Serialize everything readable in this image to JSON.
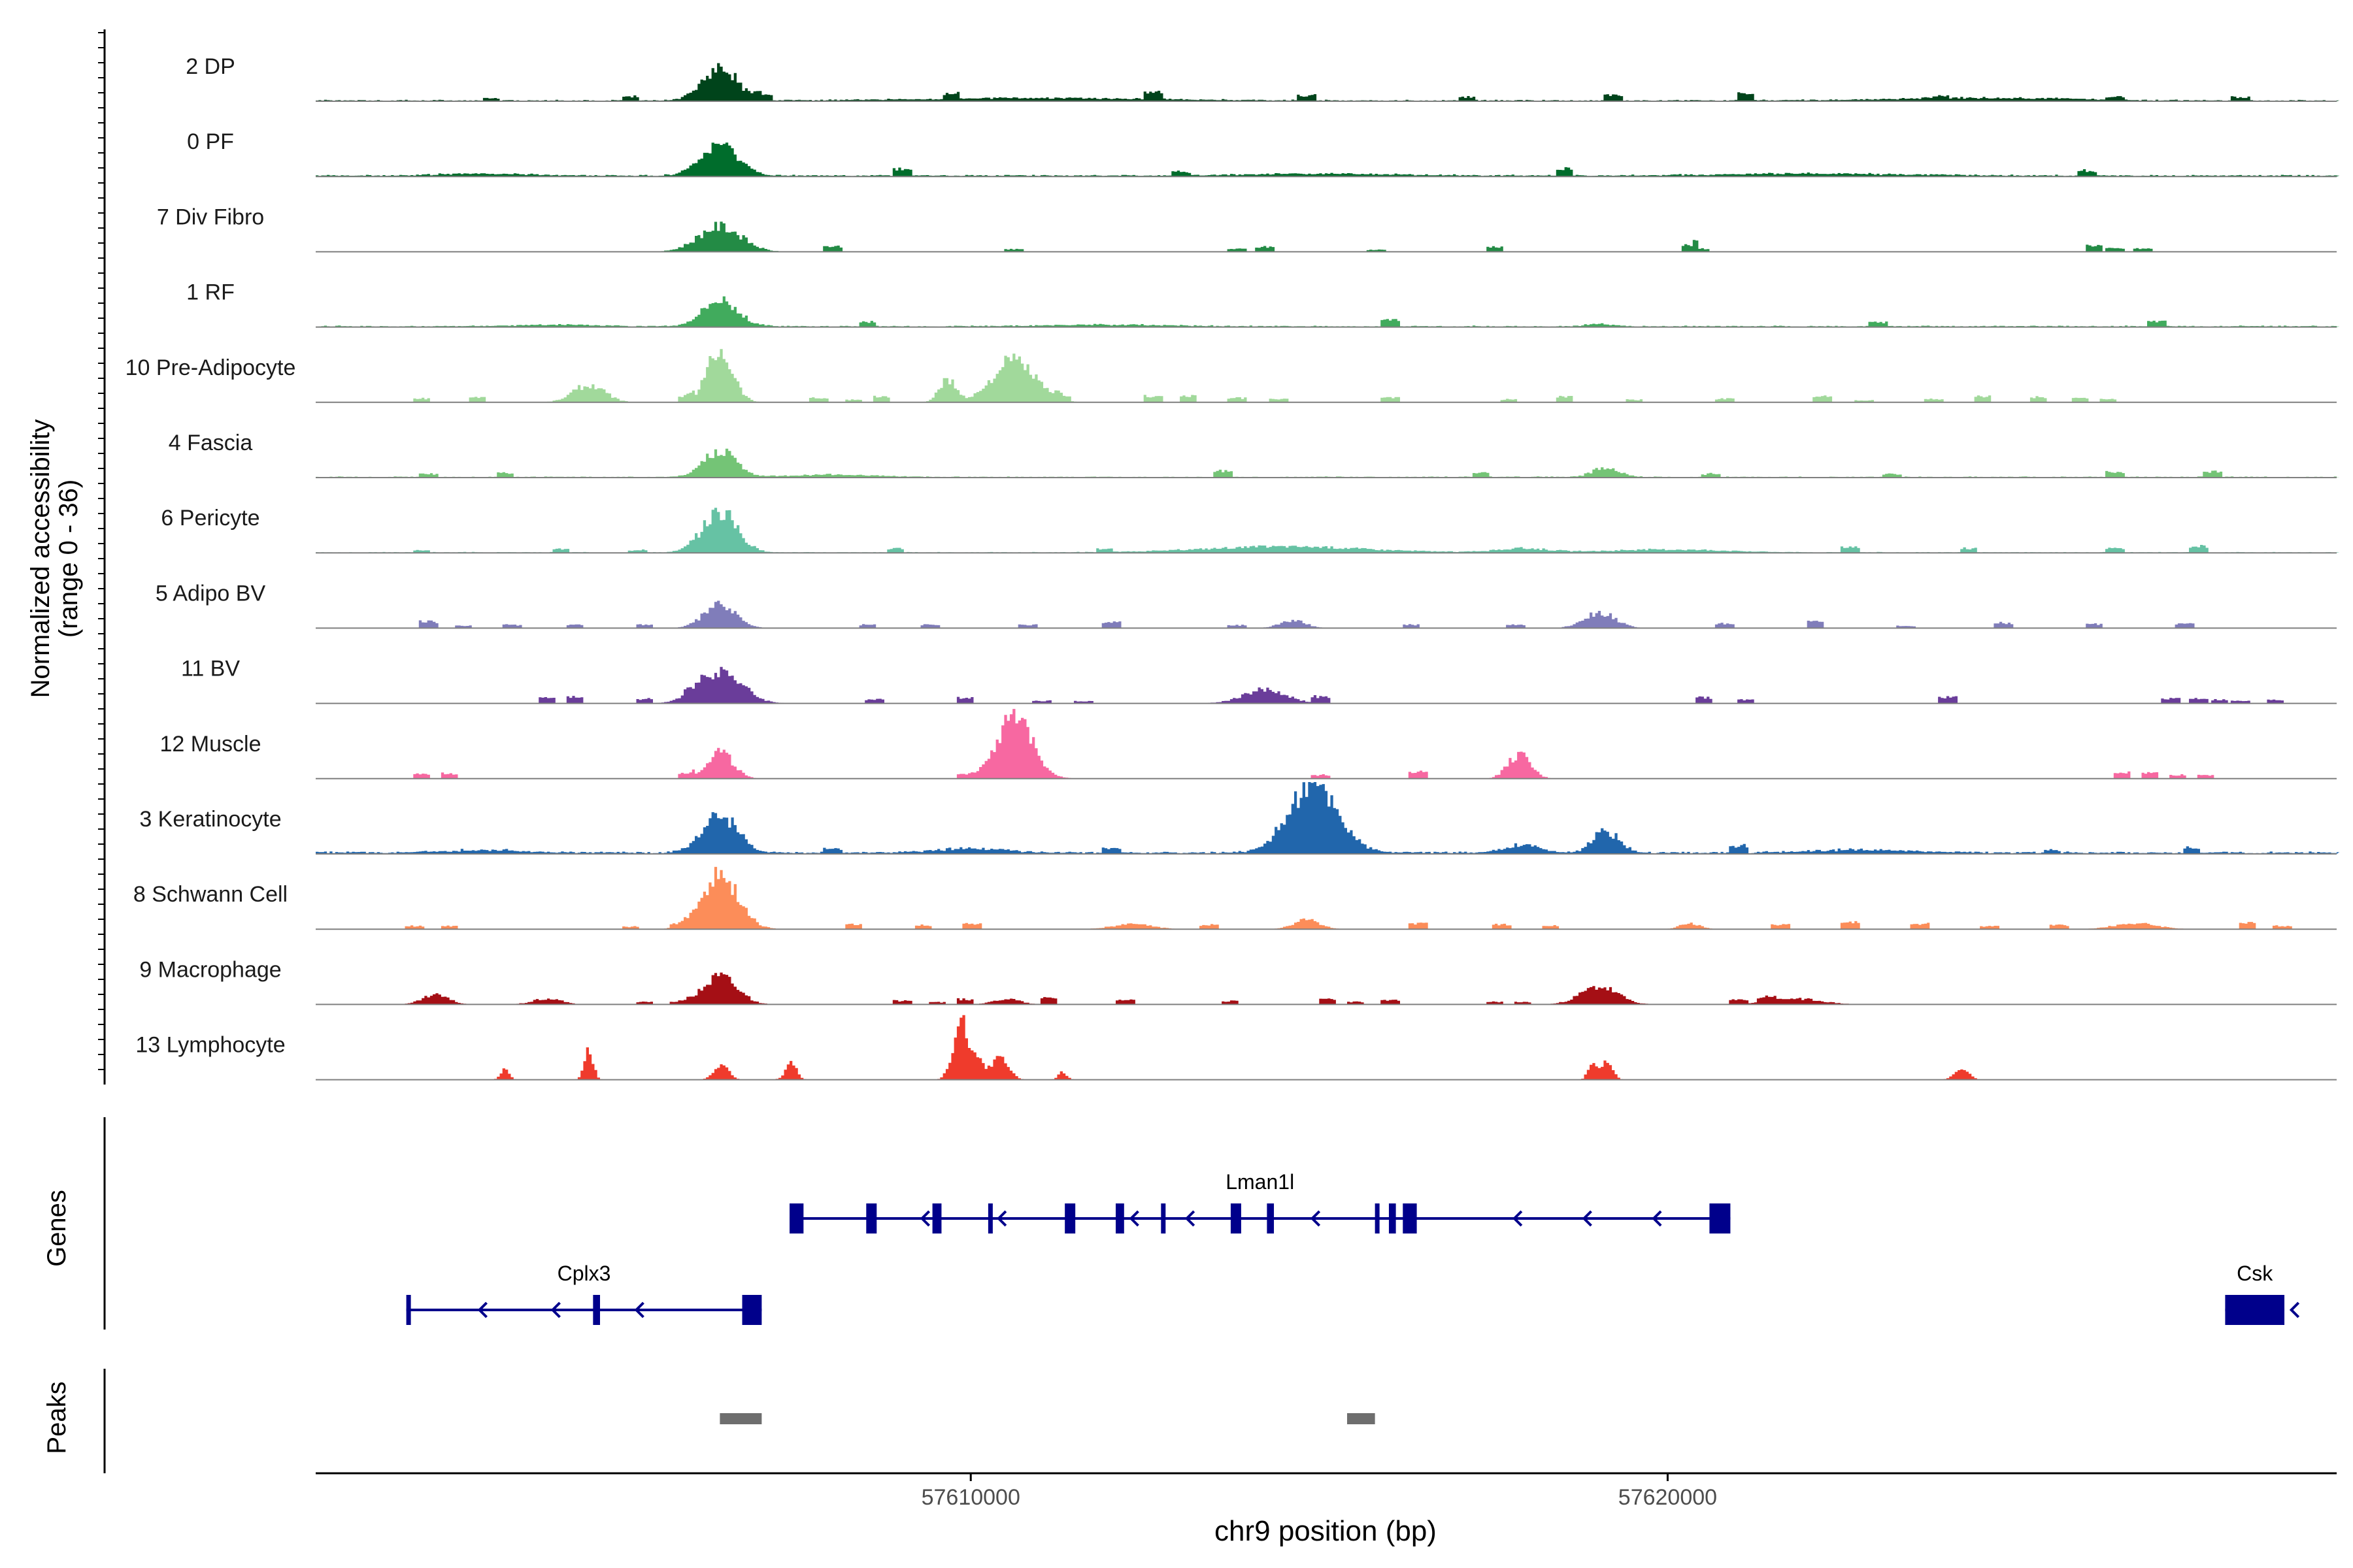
{
  "chart_data": {
    "type": "area",
    "title": "",
    "chromosome": "chr9",
    "xlabel": "chr9 position (bp)",
    "xlim": [
      57600600,
      57629600
    ],
    "x_ticks": [
      57610000,
      57620000
    ],
    "x_tick_labels": [
      "57610000",
      "57620000"
    ],
    "ylabel_line1": "Normalized accessibility",
    "ylabel_line2": "(range 0 - 36)",
    "ylim": [
      0,
      36
    ],
    "genes_label": "Genes",
    "peaks_label": "Peaks",
    "tracks": [
      {
        "name": "2 DP",
        "color": "#00441B",
        "base": 0.5,
        "peaks": [
          [
            57606380,
            17,
            1200
          ],
          [
            57611000,
            1.2,
            8000
          ],
          [
            57624500,
            1.4,
            6000
          ]
        ],
        "blips": [
          57603100,
          57605100,
          57607000,
          57609700,
          57612600,
          57614800,
          57617100,
          57619200,
          57621100,
          57623900,
          57626400,
          57628200
        ]
      },
      {
        "name": "0 PF",
        "color": "#006D2C",
        "base": 0.6,
        "peaks": [
          [
            57606380,
            15,
            1300
          ],
          [
            57603000,
            1.0,
            3000
          ],
          [
            57615000,
            1.0,
            5000
          ],
          [
            57622000,
            1.0,
            6000
          ]
        ],
        "blips": [
          57609000,
          57613000,
          57618500,
          57626000
        ]
      },
      {
        "name": "7 Div Fibro",
        "color": "#238B45",
        "base": 0,
        "peaks": [
          [
            57606380,
            13,
            1500
          ]
        ],
        "blips": [
          57608000,
          57610600,
          57613800,
          57614200,
          57615800,
          57617500,
          57620300,
          57620450,
          57626100,
          57626400,
          57626800
        ]
      },
      {
        "name": "1 RF",
        "color": "#41AB5D",
        "base": 0.5,
        "peaks": [
          [
            57606380,
            14,
            1200
          ],
          [
            57619000,
            1.2,
            900
          ],
          [
            57604000,
            0.8,
            3000
          ],
          [
            57612000,
            0.8,
            4000
          ]
        ],
        "blips": [
          57608500,
          57616000,
          57623000,
          57627000
        ]
      },
      {
        "name": "10 Pre-Adipocyte",
        "color": "#A1D99B",
        "base": 0,
        "peaks": [
          [
            57606380,
            27,
            900
          ],
          [
            57610600,
            21,
            1500
          ],
          [
            57609650,
            11,
            600
          ],
          [
            57604500,
            9,
            1100
          ]
        ],
        "blips": [
          57602100,
          57602900,
          57605900,
          57607800,
          57608300,
          57608700,
          57611300,
          57612600,
          57613100,
          57613800,
          57614400,
          57616000,
          57617700,
          57618500,
          57619500,
          57620800,
          57622200,
          57622800,
          57623800,
          57624500,
          57625300,
          57625900,
          57626300
        ]
      },
      {
        "name": "4 Fascia",
        "color": "#74C476",
        "base": 0.4,
        "peaks": [
          [
            57606380,
            14,
            1100
          ],
          [
            57619100,
            5,
            900
          ],
          [
            57608000,
            1.2,
            3000
          ]
        ],
        "blips": [
          57602200,
          57603300,
          57613600,
          57617300,
          57620600,
          57623200,
          57626400,
          57627800
        ]
      },
      {
        "name": "6 Pericyte",
        "color": "#66C2A4",
        "base": 0.3,
        "peaks": [
          [
            57606380,
            21,
            1200
          ],
          [
            57614500,
            3,
            5500
          ],
          [
            57617900,
            2,
            1800
          ],
          [
            57620000,
            1.5,
            4000
          ]
        ],
        "blips": [
          57602100,
          57604100,
          57605200,
          57608900,
          57611900,
          57622600,
          57624300,
          57626400,
          57627600
        ]
      },
      {
        "name": "5 Adipo BV",
        "color": "#807DBA",
        "base": 0,
        "peaks": [
          [
            57606380,
            12,
            1100
          ],
          [
            57619000,
            8,
            1100
          ],
          [
            57614600,
            4,
            900
          ]
        ],
        "blips": [
          57602200,
          57602700,
          57603400,
          57604300,
          57605300,
          57608500,
          57609400,
          57610800,
          57612000,
          57613800,
          57616300,
          57617800,
          57620800,
          57622100,
          57623400,
          57624800,
          57626100,
          57627400
        ]
      },
      {
        "name": "11 BV",
        "color": "#6A3D9A",
        "base": 0,
        "peaks": [
          [
            57606380,
            17,
            1500
          ],
          [
            57614200,
            7,
            1500
          ]
        ],
        "blips": [
          57603900,
          57604300,
          57605300,
          57606000,
          57608600,
          57609900,
          57611000,
          57611600,
          57615000,
          57620500,
          57621100,
          57624000,
          57627200,
          57627600,
          57627900,
          57628200,
          57628700
        ]
      },
      {
        "name": "12 Muscle",
        "color": "#F768A1",
        "base": 0,
        "peaks": [
          [
            57610600,
            30,
            1300
          ],
          [
            57606380,
            14,
            900
          ],
          [
            57617850,
            12,
            800
          ]
        ],
        "blips": [
          57602100,
          57602500,
          57605900,
          57609900,
          57610900,
          57615000,
          57616400,
          57626500,
          57626900,
          57627300,
          57627700
        ]
      },
      {
        "name": "3 Keratinocyte",
        "color": "#2166AC",
        "base": 0.8,
        "peaks": [
          [
            57614900,
            35,
            1700
          ],
          [
            57606380,
            19,
            1200
          ],
          [
            57619100,
            11,
            900
          ],
          [
            57617900,
            4,
            1200
          ],
          [
            57610000,
            2,
            2500
          ],
          [
            57603000,
            1.3,
            3000
          ],
          [
            57622800,
            1.4,
            3500
          ]
        ],
        "blips": [
          57608000,
          57612000,
          57621000,
          57625500,
          57627500
        ]
      },
      {
        "name": "8 Schwann Cell",
        "color": "#FC8D59",
        "base": 0,
        "peaks": [
          [
            57606380,
            27,
            1300
          ],
          [
            57614800,
            5,
            900
          ],
          [
            57626700,
            3,
            1500
          ],
          [
            57620300,
            3,
            700
          ],
          [
            57612300,
            2.5,
            1400
          ]
        ],
        "blips": [
          57602000,
          57602500,
          57605100,
          57605800,
          57608300,
          57609300,
          57610000,
          57613400,
          57616400,
          57617600,
          57618300,
          57621600,
          57622600,
          57623600,
          57624600,
          57625600,
          57628300,
          57628800
        ]
      },
      {
        "name": "9 Macrophage",
        "color": "#A50F15",
        "base": 0,
        "peaks": [
          [
            57606380,
            15,
            1200
          ],
          [
            57619000,
            9,
            1300
          ],
          [
            57621800,
            3,
            1800
          ],
          [
            57602300,
            5,
            900
          ],
          [
            57603900,
            3,
            1000
          ],
          [
            57610500,
            3,
            900
          ]
        ],
        "blips": [
          57605300,
          57605800,
          57609000,
          57609500,
          57609900,
          57611100,
          57612200,
          57613700,
          57615100,
          57615500,
          57616000,
          57617500,
          57617900,
          57621000,
          57621400
        ]
      },
      {
        "name": "13 Lymphocyte",
        "color": "#EF3B2C",
        "base": 0,
        "peaks": [
          [
            57609900,
            17,
            600
          ],
          [
            57604500,
            16,
            300
          ],
          [
            57609800,
            14,
            500
          ],
          [
            57619100,
            10,
            400
          ],
          [
            57618900,
            9,
            300
          ],
          [
            57610400,
            11,
            600
          ],
          [
            57606400,
            8,
            500
          ],
          [
            57607400,
            8,
            400
          ],
          [
            57603300,
            5,
            300
          ],
          [
            57624200,
            5,
            500
          ],
          [
            57610100,
            6,
            400
          ],
          [
            57611300,
            4,
            300
          ]
        ],
        "blips": []
      }
    ],
    "genes": [
      {
        "name": "Lman1l",
        "strand": "-",
        "start": 57607400,
        "end": 57620900,
        "exons": [
          [
            57607400,
            57607600
          ],
          [
            57608500,
            57608650
          ],
          [
            57609450,
            57609580
          ],
          [
            57610250,
            57610300
          ],
          [
            57611350,
            57611500
          ],
          [
            57612080,
            57612200
          ],
          [
            57612730,
            57612780
          ],
          [
            57613730,
            57613880
          ],
          [
            57614250,
            57614350
          ],
          [
            57615800,
            57615860
          ],
          [
            57616000,
            57616100
          ],
          [
            57616200,
            57616400
          ],
          [
            57620600,
            57620900
          ]
        ],
        "arrows": [
          57609300,
          57610400,
          57612300,
          57613100,
          57614900,
          57617800,
          57618800,
          57619800
        ]
      },
      {
        "name": "Cplx3",
        "strand": "-",
        "start": 57601900,
        "end": 57607000,
        "exons": [
          [
            57601900,
            57601930
          ],
          [
            57604580,
            57604680
          ],
          [
            57606720,
            57607000
          ]
        ],
        "arrows": [
          57602950,
          57604000,
          57605200
        ]
      },
      {
        "name": "Csk",
        "strand": "-",
        "start": 57628000,
        "end": 57628850,
        "exons": [
          [
            57628000,
            57628850
          ]
        ],
        "arrows": [
          57628950
        ]
      }
    ],
    "peaks": [
      [
        57606400,
        57607000
      ],
      [
        57615400,
        57615800
      ]
    ]
  }
}
